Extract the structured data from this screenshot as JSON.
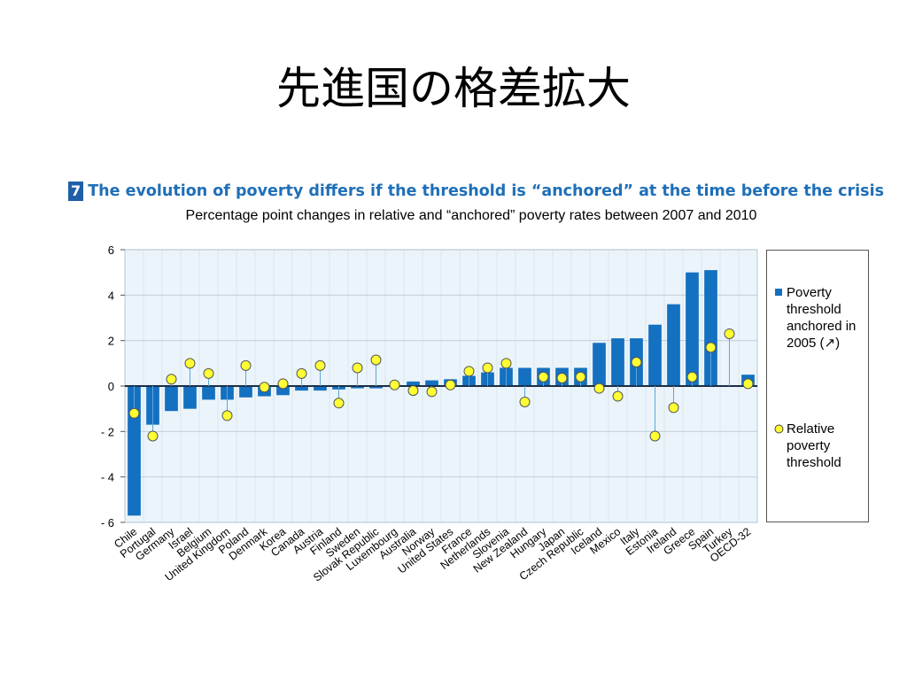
{
  "slide": {
    "title": "先進国の格差拡大"
  },
  "figure": {
    "number": "7",
    "title": "The evolution of poverty differs if the threshold is “anchored” at the time before the crisis",
    "subtitle": "Percentage point changes in relative and “anchored” poverty rates between 2007 and 2010"
  },
  "chart_data": {
    "type": "bar",
    "title": "The evolution of poverty differs if the threshold is “anchored” at the time before the crisis",
    "subtitle": "Percentage point changes in relative and “anchored” poverty rates between 2007 and 2010",
    "xlabel": "",
    "ylabel": "",
    "ylim": [
      -6,
      6
    ],
    "yticks": [
      6,
      4,
      2,
      0,
      -2,
      -4,
      -6
    ],
    "ytick_labels": [
      "6",
      "4",
      "2",
      "0",
      "- 2",
      "- 4",
      "- 6"
    ],
    "grid": true,
    "legend_position": "right",
    "categories": [
      "Chile",
      "Portugal",
      "Germany",
      "Israel",
      "Belgium",
      "United Kingdom",
      "Poland",
      "Denmark",
      "Korea",
      "Canada",
      "Austria",
      "Finland",
      "Sweden",
      "Slovak Republic",
      "Luxembourg",
      "Australia",
      "Norway",
      "United States",
      "France",
      "Netherlands",
      "Slovenia",
      "New Zealand",
      "Hungary",
      "Japan",
      "Czech Republic",
      "Iceland",
      "Mexico",
      "Italy",
      "Estonia",
      "Ireland",
      "Greece",
      "Spain",
      "Turkey",
      "OECD-32"
    ],
    "series": [
      {
        "name": "Poverty threshold anchored in 2005 (↗)",
        "type": "bar",
        "color": "#1470c0",
        "values": [
          -5.7,
          -1.7,
          -1.1,
          -1.0,
          -0.6,
          -0.6,
          -0.5,
          -0.45,
          -0.4,
          -0.2,
          -0.2,
          -0.15,
          -0.1,
          -0.1,
          0.0,
          0.2,
          0.25,
          0.3,
          0.45,
          0.6,
          0.8,
          0.8,
          0.8,
          0.8,
          0.8,
          1.9,
          2.1,
          2.1,
          2.7,
          3.6,
          5.0,
          5.1,
          null,
          0.5
        ]
      },
      {
        "name": "Relative poverty threshold",
        "type": "marker",
        "color": "#ffff33",
        "values": [
          -1.2,
          -2.2,
          0.3,
          1.0,
          0.55,
          -1.3,
          0.9,
          -0.05,
          0.1,
          0.55,
          0.9,
          -0.75,
          0.8,
          1.15,
          0.05,
          -0.2,
          -0.25,
          0.05,
          0.65,
          0.8,
          1.0,
          -0.7,
          0.4,
          0.35,
          0.4,
          -0.1,
          -0.45,
          1.05,
          -2.2,
          -0.95,
          0.4,
          1.7,
          2.3,
          0.1
        ]
      }
    ]
  },
  "legend": {
    "items": [
      {
        "label": "Poverty threshold anchored in 2005 (↗)",
        "color": "#1470c0",
        "symbol": "square"
      },
      {
        "label": "Relative poverty threshold",
        "color": "#ffff33",
        "symbol": "circle"
      }
    ]
  }
}
